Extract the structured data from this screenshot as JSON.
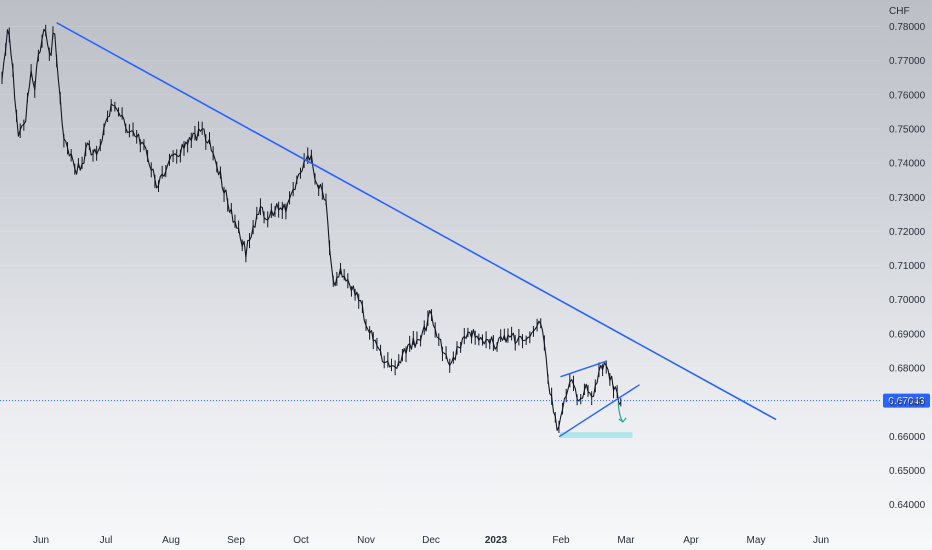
{
  "chart_data": {
    "type": "candlestick",
    "title": "",
    "ylabel": "",
    "xlabel": "",
    "currency": "CHF",
    "ylim": [
      0.634,
      0.7835
    ],
    "y_ticks": [
      "0.78000",
      "0.77000",
      "0.76000",
      "0.75000",
      "0.74000",
      "0.73000",
      "0.72000",
      "0.71000",
      "0.70000",
      "0.69000",
      "0.68000",
      "0.67000",
      "0.66000",
      "0.65000",
      "0.64000"
    ],
    "x_ticks": [
      {
        "label": "Jun",
        "month": 0,
        "bold": false
      },
      {
        "label": "Jul",
        "month": 1,
        "bold": false
      },
      {
        "label": "Aug",
        "month": 2,
        "bold": false
      },
      {
        "label": "Sep",
        "month": 3,
        "bold": false
      },
      {
        "label": "Oct",
        "month": 4,
        "bold": false
      },
      {
        "label": "Nov",
        "month": 5,
        "bold": false
      },
      {
        "label": "Dec",
        "month": 6,
        "bold": false
      },
      {
        "label": "2023",
        "month": 7,
        "bold": true
      },
      {
        "label": "Feb",
        "month": 8,
        "bold": false
      },
      {
        "label": "Mar",
        "month": 9,
        "bold": false
      },
      {
        "label": "Apr",
        "month": 10,
        "bold": false
      },
      {
        "label": "May",
        "month": 11,
        "bold": false
      },
      {
        "label": "Jun",
        "month": 12,
        "bold": false
      }
    ],
    "current_price": {
      "value": 0.67043,
      "label": "0.67043",
      "color": "#2962ff"
    },
    "price_path": [
      [
        -0.6,
        0.765
      ],
      [
        -0.5,
        0.781
      ],
      [
        -0.45,
        0.77
      ],
      [
        -0.35,
        0.748
      ],
      [
        -0.25,
        0.752
      ],
      [
        -0.15,
        0.766
      ],
      [
        -0.1,
        0.762
      ],
      [
        -0.03,
        0.772
      ],
      [
        0.05,
        0.779
      ],
      [
        0.1,
        0.774
      ],
      [
        0.15,
        0.771
      ],
      [
        0.2,
        0.779
      ],
      [
        0.25,
        0.768
      ],
      [
        0.33,
        0.75
      ],
      [
        0.45,
        0.743
      ],
      [
        0.55,
        0.738
      ],
      [
        0.65,
        0.74
      ],
      [
        0.72,
        0.745
      ],
      [
        0.85,
        0.742
      ],
      [
        1.0,
        0.752
      ],
      [
        1.1,
        0.757
      ],
      [
        1.2,
        0.755
      ],
      [
        1.3,
        0.751
      ],
      [
        1.45,
        0.748
      ],
      [
        1.6,
        0.745
      ],
      [
        1.7,
        0.739
      ],
      [
        1.8,
        0.733
      ],
      [
        1.9,
        0.738
      ],
      [
        2.05,
        0.742
      ],
      [
        2.2,
        0.745
      ],
      [
        2.35,
        0.748
      ],
      [
        2.5,
        0.749
      ],
      [
        2.6,
        0.745
      ],
      [
        2.75,
        0.737
      ],
      [
        2.85,
        0.73
      ],
      [
        2.95,
        0.724
      ],
      [
        3.05,
        0.72
      ],
      [
        3.15,
        0.714
      ],
      [
        3.25,
        0.72
      ],
      [
        3.35,
        0.726
      ],
      [
        3.5,
        0.724
      ],
      [
        3.65,
        0.728
      ],
      [
        3.8,
        0.727
      ],
      [
        3.9,
        0.733
      ],
      [
        4.02,
        0.738
      ],
      [
        4.15,
        0.742
      ],
      [
        4.22,
        0.735
      ],
      [
        4.3,
        0.733
      ],
      [
        4.38,
        0.73
      ],
      [
        4.45,
        0.714
      ],
      [
        4.5,
        0.705
      ],
      [
        4.6,
        0.708
      ],
      [
        4.75,
        0.705
      ],
      [
        4.88,
        0.7
      ],
      [
        5.0,
        0.694
      ],
      [
        5.15,
        0.687
      ],
      [
        5.28,
        0.681
      ],
      [
        5.4,
        0.68
      ],
      [
        5.55,
        0.683
      ],
      [
        5.7,
        0.687
      ],
      [
        5.85,
        0.689
      ],
      [
        6.0,
        0.696
      ],
      [
        6.1,
        0.689
      ],
      [
        6.2,
        0.685
      ],
      [
        6.3,
        0.68
      ],
      [
        6.45,
        0.687
      ],
      [
        6.6,
        0.69
      ],
      [
        6.8,
        0.689
      ],
      [
        7.0,
        0.687
      ],
      [
        7.2,
        0.689
      ],
      [
        7.45,
        0.688
      ],
      [
        7.6,
        0.691
      ],
      [
        7.7,
        0.693
      ],
      [
        7.78,
        0.68
      ],
      [
        7.88,
        0.668
      ],
      [
        7.95,
        0.661
      ],
      [
        8.05,
        0.671
      ],
      [
        8.15,
        0.678
      ],
      [
        8.28,
        0.669
      ],
      [
        8.4,
        0.675
      ],
      [
        8.5,
        0.671
      ],
      [
        8.6,
        0.679
      ],
      [
        8.68,
        0.681
      ],
      [
        8.78,
        0.676
      ],
      [
        8.88,
        0.671
      ],
      [
        8.92,
        0.67
      ]
    ],
    "annotations": {
      "trendline_main": {
        "from": [
          0.25,
          0.781
        ],
        "to": [
          11.3,
          0.665
        ],
        "color": "#2962ff"
      },
      "wedge_upper": {
        "from": [
          8.0,
          0.6775
        ],
        "to": [
          8.7,
          0.682
        ],
        "color": "#2962ff"
      },
      "wedge_lower": {
        "from": [
          7.98,
          0.66
        ],
        "to": [
          9.2,
          0.675
        ],
        "color": "#2962ff"
      },
      "support_band": {
        "from_month": 7.98,
        "to_month": 9.1,
        "y_low": 0.6595,
        "y_high": 0.6612,
        "color": "#a8e3ea"
      },
      "projection_arrow": {
        "from": [
          8.88,
          0.6698
        ],
        "to": [
          8.95,
          0.6642
        ],
        "color": "#26a69a"
      }
    }
  }
}
